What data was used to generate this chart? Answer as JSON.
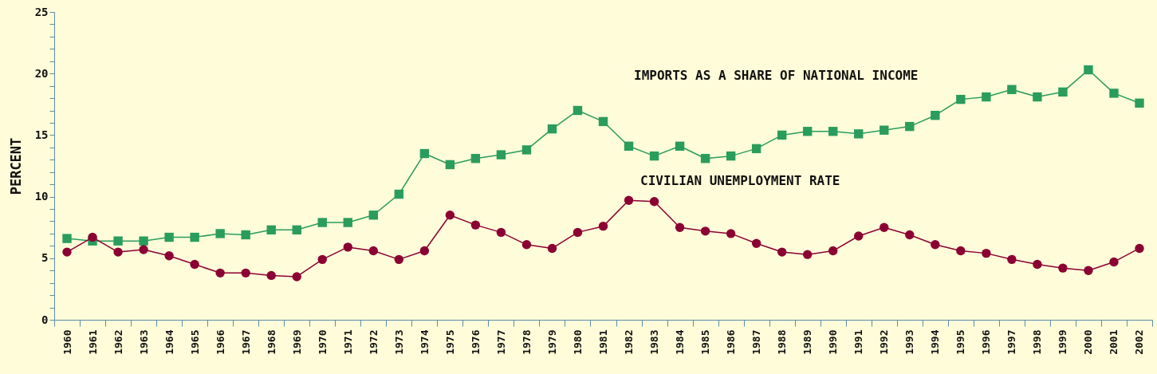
{
  "chart_data": {
    "type": "line",
    "ylabel": "PERCENT",
    "categories": [
      "1960",
      "1961",
      "1962",
      "1963",
      "1964",
      "1965",
      "1966",
      "1967",
      "1968",
      "1969",
      "1970",
      "1971",
      "1972",
      "1973",
      "1974",
      "1975",
      "1976",
      "1977",
      "1978",
      "1979",
      "1980",
      "1981",
      "1982",
      "1983",
      "1984",
      "1985",
      "1986",
      "1987",
      "1988",
      "1989",
      "1990",
      "1991",
      "1992",
      "1993",
      "1994",
      "1995",
      "1996",
      "1997",
      "1998",
      "1999",
      "2000",
      "2001",
      "2002"
    ],
    "series": [
      {
        "name": "IMPORTS AS A SHARE OF NATIONAL INCOME",
        "color": "#2a9d5c",
        "marker": "square",
        "values": [
          6.6,
          6.4,
          6.4,
          6.4,
          6.7,
          6.7,
          7.0,
          6.9,
          7.3,
          7.3,
          7.9,
          7.9,
          8.5,
          10.2,
          13.5,
          12.6,
          13.1,
          13.4,
          13.8,
          15.5,
          17.0,
          16.1,
          14.1,
          13.3,
          14.1,
          13.1,
          13.3,
          13.9,
          15.0,
          15.3,
          15.3,
          15.1,
          15.4,
          15.7,
          16.6,
          17.9,
          18.1,
          18.7,
          18.1,
          18.5,
          20.3,
          18.4,
          17.6
        ]
      },
      {
        "name": "CIVILIAN UNEMPLOYMENT RATE",
        "color": "#8b0033",
        "marker": "circle",
        "values": [
          5.5,
          6.7,
          5.5,
          5.7,
          5.2,
          4.5,
          3.8,
          3.8,
          3.6,
          3.5,
          4.9,
          5.9,
          5.6,
          4.9,
          5.6,
          8.5,
          7.7,
          7.1,
          6.1,
          5.8,
          7.1,
          7.6,
          9.7,
          9.6,
          7.5,
          7.2,
          7.0,
          6.2,
          5.5,
          5.3,
          5.6,
          6.8,
          7.5,
          6.9,
          6.1,
          5.6,
          5.4,
          4.9,
          4.5,
          4.2,
          4.0,
          4.7,
          5.8
        ]
      }
    ],
    "ylim": [
      0,
      25
    ],
    "yticks": [
      0,
      {
        "value": 1,
        "label": null
      },
      {
        "value": 2,
        "label": null
      },
      {
        "value": 3,
        "label": null
      },
      {
        "value": 4,
        "label": null
      },
      5,
      {
        "value": 6,
        "label": null
      },
      {
        "value": 7,
        "label": null
      },
      {
        "value": 8,
        "label": null
      },
      {
        "value": 9,
        "label": null
      },
      10,
      {
        "value": 11,
        "label": null
      },
      {
        "value": 12,
        "label": null
      },
      {
        "value": 13,
        "label": null
      },
      {
        "value": 14,
        "label": null
      },
      15,
      {
        "value": 16,
        "label": null
      },
      {
        "value": 17,
        "label": null
      },
      {
        "value": 18,
        "label": null
      },
      {
        "value": 19,
        "label": null
      },
      20,
      {
        "value": 21,
        "label": null
      },
      {
        "value": 22,
        "label": null
      },
      {
        "value": 23,
        "label": null
      },
      {
        "value": 24,
        "label": null
      },
      25
    ],
    "grid": false
  }
}
